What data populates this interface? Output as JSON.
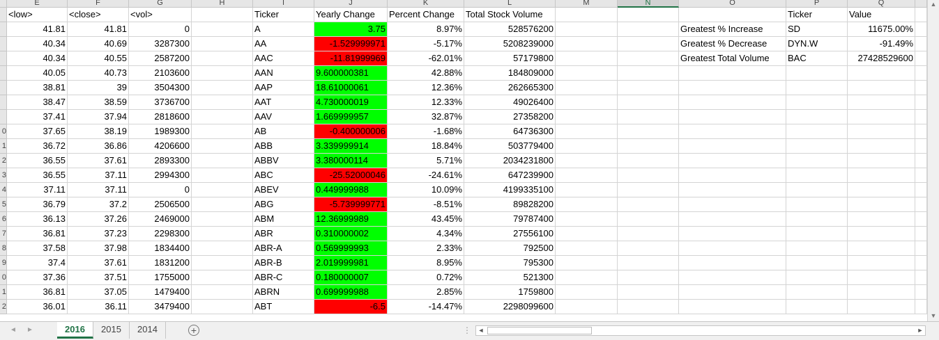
{
  "columns": [
    "E",
    "F",
    "G",
    "H",
    "I",
    "J",
    "K",
    "L",
    "M",
    "N",
    "O",
    "P",
    "Q"
  ],
  "selected_column": "N",
  "row_numbers": [
    "",
    "",
    "",
    "",
    "",
    "",
    "",
    "",
    "0",
    "1",
    "2",
    "3",
    "4",
    "5",
    "6",
    "7",
    "8",
    "9",
    "0",
    "1",
    "2"
  ],
  "headers": {
    "low": "<low>",
    "close": "<close>",
    "vol": "<vol>",
    "ticker": "Ticker",
    "yearly_change": "Yearly  Change",
    "percent_change": "Percent Change",
    "total_volume": "Total Stock Volume",
    "summary_ticker": "Ticker",
    "summary_value": "Value"
  },
  "rows": [
    {
      "low": "41.81",
      "close": "41.81",
      "vol": "0",
      "ticker": "A",
      "change": "3.75",
      "pct": "8.97%",
      "total": "528576200"
    },
    {
      "low": "40.34",
      "close": "40.69",
      "vol": "3287300",
      "ticker": "AA",
      "change": "-1.529999971",
      "pct": "-5.17%",
      "total": "5208239000"
    },
    {
      "low": "40.34",
      "close": "40.55",
      "vol": "2587200",
      "ticker": "AAC",
      "change": "-11.81999969",
      "pct": "-62.01%",
      "total": "57179800"
    },
    {
      "low": "40.05",
      "close": "40.73",
      "vol": "2103600",
      "ticker": "AAN",
      "change": "9.600000381",
      "pct": "42.88%",
      "total": "184809000"
    },
    {
      "low": "38.81",
      "close": "39",
      "vol": "3504300",
      "ticker": "AAP",
      "change": "18.61000061",
      "pct": "12.36%",
      "total": "262665300"
    },
    {
      "low": "38.47",
      "close": "38.59",
      "vol": "3736700",
      "ticker": "AAT",
      "change": "4.730000019",
      "pct": "12.33%",
      "total": "49026400"
    },
    {
      "low": "37.41",
      "close": "37.94",
      "vol": "2818600",
      "ticker": "AAV",
      "change": "1.669999957",
      "pct": "32.87%",
      "total": "27358200"
    },
    {
      "low": "37.65",
      "close": "38.19",
      "vol": "1989300",
      "ticker": "AB",
      "change": "-0.400000006",
      "pct": "-1.68%",
      "total": "64736300"
    },
    {
      "low": "36.72",
      "close": "36.86",
      "vol": "4206600",
      "ticker": "ABB",
      "change": "3.339999914",
      "pct": "18.84%",
      "total": "503779400"
    },
    {
      "low": "36.55",
      "close": "37.61",
      "vol": "2893300",
      "ticker": "ABBV",
      "change": "3.380000114",
      "pct": "5.71%",
      "total": "2034231800"
    },
    {
      "low": "36.55",
      "close": "37.11",
      "vol": "2994300",
      "ticker": "ABC",
      "change": "-25.52000046",
      "pct": "-24.61%",
      "total": "647239900"
    },
    {
      "low": "37.11",
      "close": "37.11",
      "vol": "0",
      "ticker": "ABEV",
      "change": "0.449999988",
      "pct": "10.09%",
      "total": "4199335100"
    },
    {
      "low": "36.79",
      "close": "37.2",
      "vol": "2506500",
      "ticker": "ABG",
      "change": "-5.739999771",
      "pct": "-8.51%",
      "total": "89828200"
    },
    {
      "low": "36.13",
      "close": "37.26",
      "vol": "2469000",
      "ticker": "ABM",
      "change": "12.36999989",
      "pct": "43.45%",
      "total": "79787400"
    },
    {
      "low": "36.81",
      "close": "37.23",
      "vol": "2298300",
      "ticker": "ABR",
      "change": "0.310000002",
      "pct": "4.34%",
      "total": "27556100"
    },
    {
      "low": "37.58",
      "close": "37.98",
      "vol": "1834400",
      "ticker": "ABR-A",
      "change": "0.569999993",
      "pct": "2.33%",
      "total": "792500"
    },
    {
      "low": "37.4",
      "close": "37.61",
      "vol": "1831200",
      "ticker": "ABR-B",
      "change": "2.019999981",
      "pct": "8.95%",
      "total": "795300"
    },
    {
      "low": "37.36",
      "close": "37.51",
      "vol": "1755000",
      "ticker": "ABR-C",
      "change": "0.180000007",
      "pct": "0.72%",
      "total": "521300"
    },
    {
      "low": "36.81",
      "close": "37.05",
      "vol": "1479400",
      "ticker": "ABRN",
      "change": "0.699999988",
      "pct": "2.85%",
      "total": "1759800"
    },
    {
      "low": "36.01",
      "close": "36.11",
      "vol": "3479400",
      "ticker": "ABT",
      "change": "-6.5",
      "pct": "-14.47%",
      "total": "2298099600"
    }
  ],
  "summary": [
    {
      "label": "Greatest % Increase",
      "ticker": "SD",
      "value": "11675.00%"
    },
    {
      "label": "Greatest % Decrease",
      "ticker": "DYN.W",
      "value": "-91.49%"
    },
    {
      "label": "Greatest Total Volume",
      "ticker": "BAC",
      "value": "27428529600"
    }
  ],
  "sheet_tabs": [
    "2016",
    "2015",
    "2014"
  ],
  "active_tab": "2016",
  "icons": {
    "add_sheet": "+",
    "nav_prev": "◄",
    "nav_next": "►",
    "scroll_up": "▲",
    "scroll_down": "▼",
    "scroll_left": "◄",
    "scroll_right": "►",
    "dots": "⋮"
  },
  "colors": {
    "positive": "#00ff00",
    "negative": "#ff0000",
    "accent": "#217346"
  }
}
